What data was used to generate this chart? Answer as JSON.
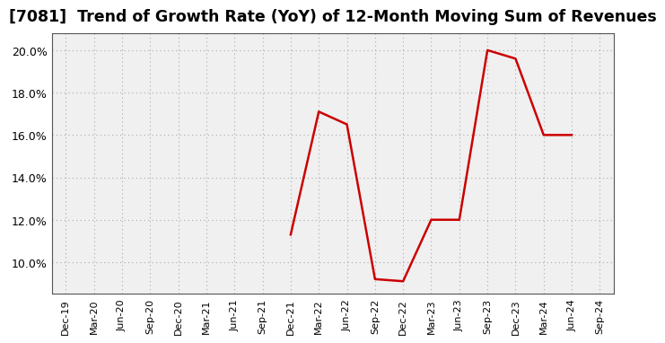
{
  "title": "[7081]  Trend of Growth Rate (YoY) of 12-Month Moving Sum of Revenues",
  "title_fontsize": 12.5,
  "line_color": "#CC0000",
  "line_width": 1.8,
  "background_color": "#ffffff",
  "plot_bg_color": "#f0f0f0",
  "grid_color": "#aaaaaa",
  "ylim": [
    0.085,
    0.208
  ],
  "yticks": [
    0.1,
    0.12,
    0.14,
    0.16,
    0.18,
    0.2
  ],
  "x_labels": [
    "Dec-19",
    "Mar-20",
    "Jun-20",
    "Sep-20",
    "Dec-20",
    "Mar-21",
    "Jun-21",
    "Sep-21",
    "Dec-21",
    "Mar-22",
    "Jun-22",
    "Sep-22",
    "Dec-22",
    "Mar-23",
    "Jun-23",
    "Sep-23",
    "Dec-23",
    "Mar-24",
    "Jun-24",
    "Sep-24"
  ],
  "data_x": [
    "Dec-21",
    "Mar-22",
    "Jun-22",
    "Sep-22",
    "Dec-22",
    "Mar-23",
    "Jun-23",
    "Sep-23",
    "Dec-23",
    "Mar-24",
    "Jun-24"
  ],
  "data_y": [
    0.113,
    0.171,
    0.165,
    0.092,
    0.091,
    0.12,
    0.12,
    0.2,
    0.196,
    0.16,
    0.16
  ]
}
